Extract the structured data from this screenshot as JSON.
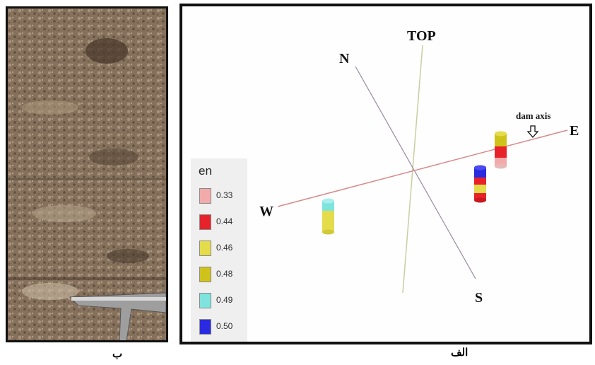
{
  "captions": {
    "left": "ب",
    "right": "الف"
  },
  "diagram": {
    "top_label": "TOP",
    "north_label": "N",
    "south_label": "S",
    "east_label": "E",
    "west_label": "W",
    "dam_axis_label": "dam axis"
  },
  "legend": {
    "title": "en",
    "items": [
      {
        "value": "0.33",
        "color": "#f2aaaa"
      },
      {
        "value": "0.44",
        "color": "#e8222a"
      },
      {
        "value": "0.46",
        "color": "#e4dc4a"
      },
      {
        "value": "0.48",
        "color": "#cfc21a"
      },
      {
        "value": "0.49",
        "color": "#7fe3de"
      },
      {
        "value": "0.50",
        "color": "#2a2ae0"
      }
    ]
  }
}
